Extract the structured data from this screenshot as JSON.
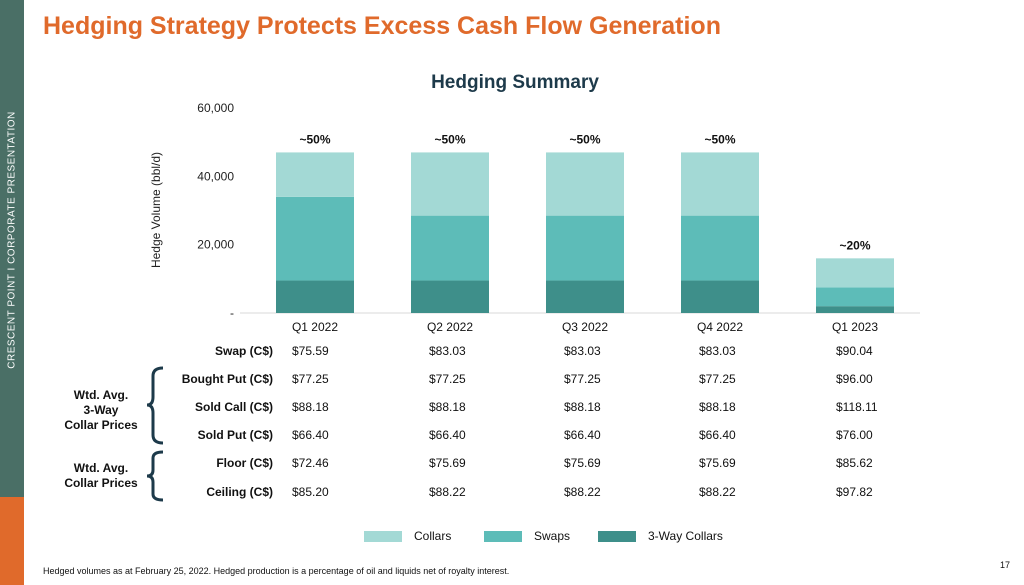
{
  "sidebar": {
    "text": "CRESCENT POINT   I   CORPORATE PRESENTATION"
  },
  "slide": {
    "title": "Hedging Strategy Protects Excess Cash Flow Generation",
    "footnote": "Hedged volumes as at February 25, 2022. Hedged production is a percentage of oil and liquids net of royalty interest.",
    "page_number": "17"
  },
  "chart_data": {
    "type": "bar",
    "stacked": true,
    "title": "Hedging Summary",
    "xlabel": "",
    "ylabel": "Hedge Volume (bbl/d)",
    "ylim": [
      0,
      60000
    ],
    "yticks": [
      0,
      20000,
      40000,
      60000
    ],
    "ytick_labels": [
      "-",
      "20,000",
      "40,000",
      "60,000"
    ],
    "grid": false,
    "legend_position": "bottom",
    "categories": [
      "Q1 2022",
      "Q2 2022",
      "Q3 2022",
      "Q4 2022",
      "Q1 2023"
    ],
    "series": [
      {
        "name": "3-Way Collars",
        "color": "#3e8f8a",
        "values": [
          9500,
          9500,
          9500,
          9500,
          2000
        ]
      },
      {
        "name": "Swaps",
        "color": "#5dbcb8",
        "values": [
          24500,
          19000,
          19000,
          19000,
          5500
        ]
      },
      {
        "name": "Collars",
        "color": "#a3d9d5",
        "values": [
          13000,
          18500,
          18500,
          18500,
          8500
        ]
      }
    ],
    "bar_labels": [
      "~50%",
      "~50%",
      "~50%",
      "~50%",
      "~20%"
    ],
    "legend_order": [
      "Collars",
      "Swaps",
      "3-Way Collars"
    ]
  },
  "price_table": {
    "rows": [
      {
        "label": "Swap (C$)",
        "values": [
          "$75.59",
          "$83.03",
          "$83.03",
          "$83.03",
          "$90.04"
        ]
      },
      {
        "label": "Bought Put (C$)",
        "values": [
          "$77.25",
          "$77.25",
          "$77.25",
          "$77.25",
          "$96.00"
        ]
      },
      {
        "label": "Sold Call (C$)",
        "values": [
          "$88.18",
          "$88.18",
          "$88.18",
          "$88.18",
          "$118.11"
        ]
      },
      {
        "label": "Sold Put (C$)",
        "values": [
          "$66.40",
          "$66.40",
          "$66.40",
          "$66.40",
          "$76.00"
        ]
      },
      {
        "label": "Floor (C$)",
        "values": [
          "$72.46",
          "$75.69",
          "$75.69",
          "$75.69",
          "$85.62"
        ]
      },
      {
        "label": "Ceiling (C$)",
        "values": [
          "$85.20",
          "$88.22",
          "$88.22",
          "$88.22",
          "$97.82"
        ]
      }
    ],
    "groups": [
      {
        "lines": [
          "Wtd. Avg.",
          "3-Way",
          "Collar Prices"
        ]
      },
      {
        "lines": [
          "Wtd. Avg.",
          "Collar Prices"
        ]
      }
    ]
  },
  "colors": {
    "title": "#e06a2b",
    "sidebar": "#4a6f66",
    "accent": "#e06a2b",
    "bracket": "#1d3a4a"
  }
}
